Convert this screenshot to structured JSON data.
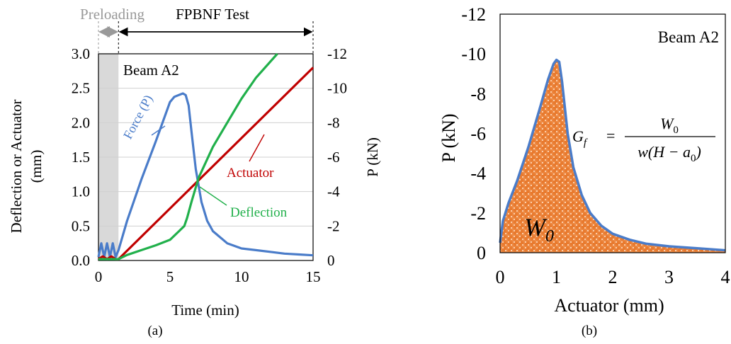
{
  "chart_data": [
    {
      "type": "line",
      "panel_label": "(a)",
      "title": "Beam A2",
      "xlabel": "Time (min)",
      "ylabel_left": "Deflection or Actuator",
      "ylabel_left_unit": "(mm)",
      "ylabel_right": "P (kN)",
      "xlim": [
        0,
        15
      ],
      "ylim_left": [
        0,
        3
      ],
      "ylim_right_display": [
        0,
        -12
      ],
      "x_ticks": [
        "0",
        "5",
        "10",
        "15"
      ],
      "y_left_ticks": [
        "0.0",
        "0.5",
        "1.0",
        "1.5",
        "2.0",
        "2.5",
        "3.0"
      ],
      "y_right_ticks": [
        "0",
        "-2",
        "-4",
        "-6",
        "-8",
        "-10",
        "-12"
      ],
      "phases": [
        {
          "label": "Preloading",
          "x_range": [
            0,
            1.4
          ],
          "color": "#999999"
        },
        {
          "label": "FPBNF Test",
          "x_range": [
            1.4,
            15
          ],
          "color": "#000000"
        }
      ],
      "series": [
        {
          "name": "Force (P)",
          "axis": "right",
          "color": "#4a7cc9",
          "x": [
            0,
            0.2,
            0.4,
            0.6,
            0.8,
            1.0,
            1.2,
            1.4,
            2,
            3,
            4,
            5,
            5.3,
            5.6,
            5.9,
            6.1,
            6.3,
            6.5,
            6.8,
            7.2,
            7.6,
            8,
            9,
            10,
            11,
            12,
            13,
            14,
            15
          ],
          "y": [
            -0.2,
            -1.0,
            -0.2,
            -1.0,
            -0.2,
            -1.0,
            -0.2,
            -0.6,
            -2.3,
            -4.7,
            -6.9,
            -9.2,
            -9.5,
            -9.6,
            -9.7,
            -9.6,
            -9.0,
            -7.5,
            -5.3,
            -3.4,
            -2.3,
            -1.7,
            -1.0,
            -0.7,
            -0.6,
            -0.5,
            -0.4,
            -0.35,
            -0.3
          ]
        },
        {
          "name": "Actuator",
          "axis": "left",
          "color": "#c00000",
          "x": [
            0,
            0.3,
            0.6,
            0.9,
            1.2,
            1.4,
            15
          ],
          "y": [
            0.02,
            0.06,
            0.02,
            0.06,
            0.02,
            0.02,
            2.8
          ]
        },
        {
          "name": "Deflection",
          "axis": "left",
          "color": "#21b04b",
          "x": [
            0,
            1.4,
            2,
            3,
            4,
            5,
            5.5,
            6,
            6.2,
            6.5,
            7,
            8,
            9,
            10,
            11,
            12.5
          ],
          "y": [
            0.02,
            0.02,
            0.08,
            0.15,
            0.22,
            0.3,
            0.4,
            0.5,
            0.62,
            0.85,
            1.2,
            1.65,
            2.0,
            2.35,
            2.65,
            3.0
          ]
        }
      ]
    },
    {
      "type": "area",
      "panel_label": "(b)",
      "title": "Beam A2",
      "xlabel": "Actuator (mm)",
      "ylabel": "P (kN)",
      "xlim": [
        0,
        4
      ],
      "ylim_display": [
        0,
        -12
      ],
      "x_ticks": [
        "0",
        "1",
        "2",
        "3",
        "4"
      ],
      "y_ticks": [
        "0",
        "-2",
        "-4",
        "-6",
        "-8",
        "-10",
        "-12"
      ],
      "area_label": "W",
      "area_label_sub": "0",
      "equation": {
        "lhs": "G",
        "lhs_sub": "f",
        "eq": "=",
        "numerator": "W",
        "numerator_sub": "0",
        "denominator_pre": "w(H − a",
        "denominator_sub": "0",
        "denominator_post": ")"
      },
      "series": [
        {
          "name": "P",
          "color": "#4a7cc9",
          "fill": "#e87a2e",
          "x": [
            0,
            0.05,
            0.15,
            0.3,
            0.5,
            0.7,
            0.85,
            0.95,
            1.0,
            1.05,
            1.1,
            1.2,
            1.3,
            1.45,
            1.6,
            1.8,
            2.0,
            2.3,
            2.6,
            3.0,
            3.5,
            4.0
          ],
          "y": [
            -0.5,
            -1.6,
            -2.5,
            -3.6,
            -5.3,
            -7.2,
            -8.7,
            -9.5,
            -9.7,
            -9.6,
            -8.6,
            -6.0,
            -4.3,
            -2.9,
            -2.0,
            -1.35,
            -0.95,
            -0.65,
            -0.45,
            -0.32,
            -0.22,
            -0.12
          ]
        }
      ]
    }
  ]
}
